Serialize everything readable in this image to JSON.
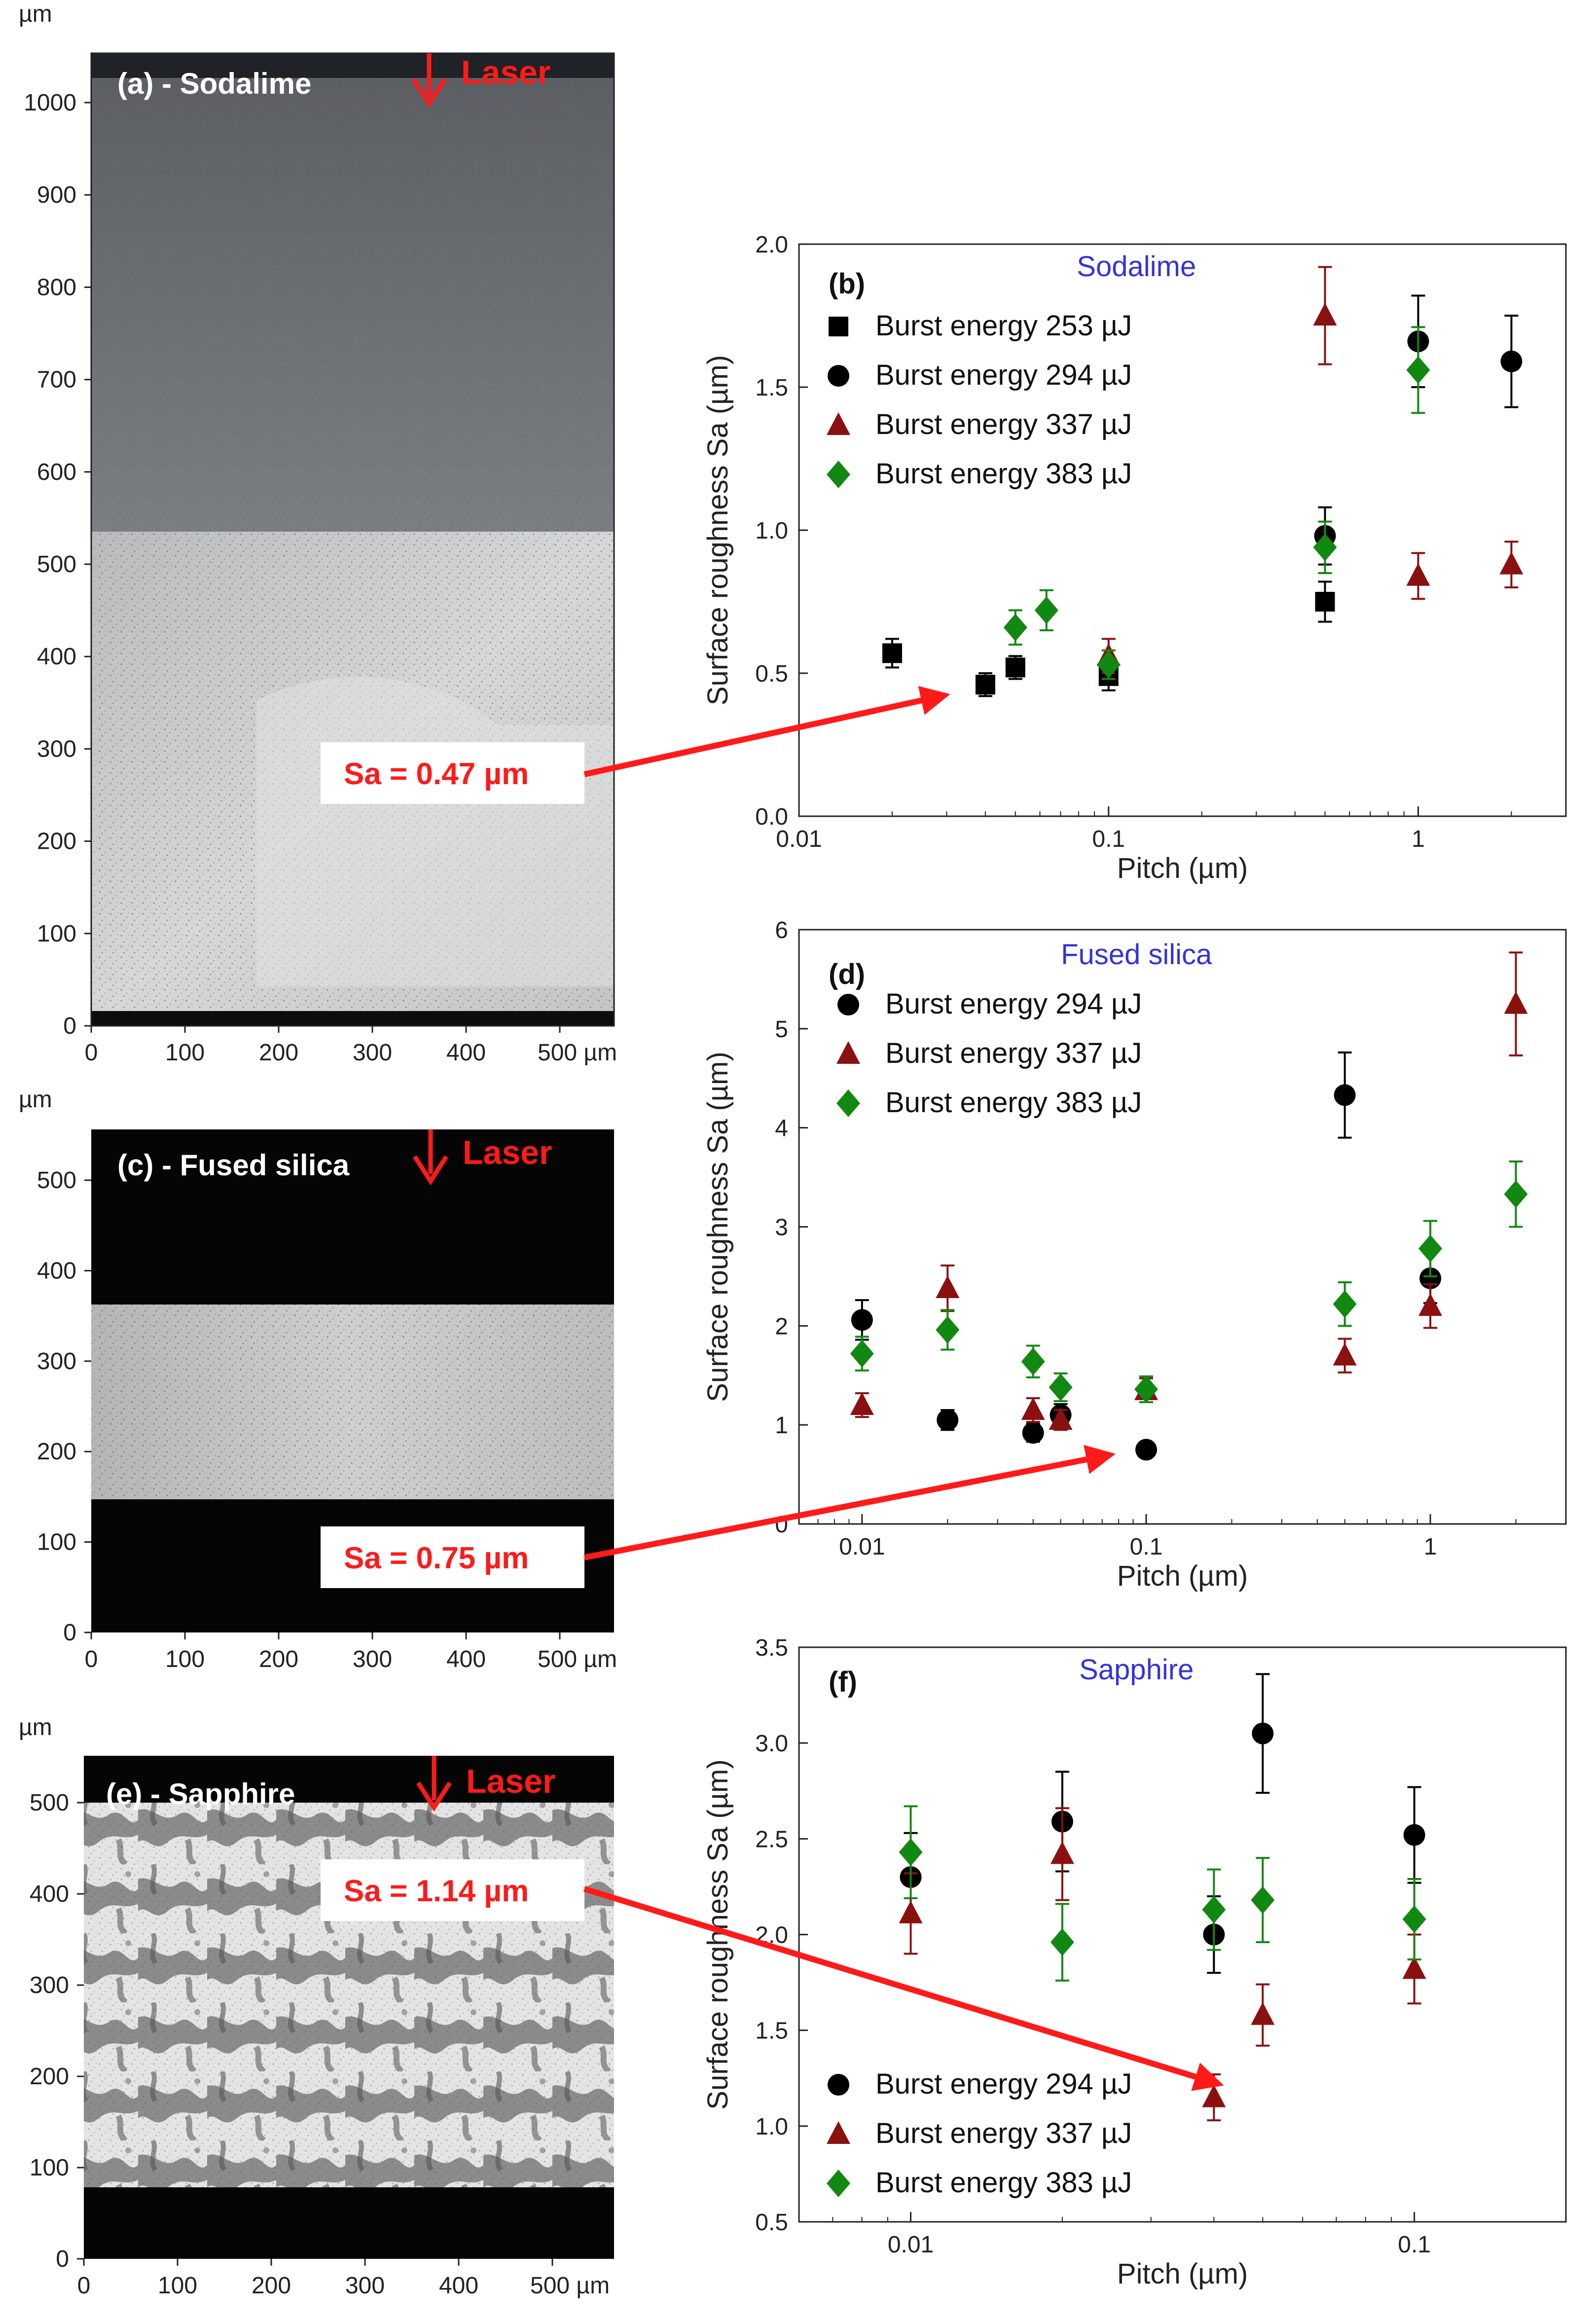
{
  "colors": {
    "black_series": "#000000",
    "red_series": "#8b1010",
    "green_series": "#118811",
    "title_blue": "#3333dd",
    "arrow_red": "#ff1a1a"
  },
  "micrographs": [
    {
      "id": "a",
      "title": "(a) - Sodalime",
      "laser_label": "Laser",
      "unit": "µm",
      "y_ticks": [
        "0",
        "100",
        "200",
        "300",
        "400",
        "500",
        "600",
        "700",
        "800",
        "900",
        "1000"
      ],
      "x_ticks": [
        "0",
        "100",
        "200",
        "300",
        "400",
        "500 µm"
      ],
      "sa_label": "Sa = 0.47 µm"
    },
    {
      "id": "c",
      "title": "(c) - Fused silica",
      "laser_label": "Laser",
      "unit": "µm",
      "y_ticks": [
        "0",
        "100",
        "200",
        "300",
        "400",
        "500"
      ],
      "x_ticks": [
        "0",
        "100",
        "200",
        "300",
        "400",
        "500 µm"
      ],
      "sa_label": "Sa = 0.75 µm"
    },
    {
      "id": "e",
      "title": "(e) - Sapphire",
      "laser_label": "Laser",
      "unit": "µm",
      "y_ticks": [
        "0",
        "100",
        "200",
        "300",
        "400",
        "500"
      ],
      "x_ticks": [
        "0",
        "100",
        "200",
        "300",
        "400",
        "500 µm"
      ],
      "sa_label": "Sa = 1.14 µm"
    }
  ],
  "chart_data": [
    {
      "id": "b",
      "type": "scatter",
      "panel_label": "(b)",
      "title": "Sodalime",
      "xlabel": "Pitch (µm)",
      "ylabel": "Surface roughness Sa (µm)",
      "xscale": "log",
      "xlim": [
        0.01,
        3
      ],
      "ylim": [
        0,
        2
      ],
      "x_ticks": [
        0.01,
        0.1,
        1
      ],
      "x_tick_labels": [
        "0.01",
        "0.1",
        "1"
      ],
      "y_ticks": [
        0,
        0.5,
        1,
        1.5,
        2
      ],
      "y_tick_labels": [
        "0.0",
        "0.5",
        "1.0",
        "1.5",
        "2.0"
      ],
      "legend_position": "top-left",
      "series": [
        {
          "name": "Burst energy 253 µJ",
          "marker": "square",
          "color": "#000000",
          "x": [
            0.02,
            0.04,
            0.05,
            0.1,
            0.5
          ],
          "y": [
            0.57,
            0.46,
            0.52,
            0.49,
            0.75
          ],
          "err": [
            0.05,
            0.04,
            0.04,
            0.05,
            0.07
          ]
        },
        {
          "name": "Burst energy 294 µJ",
          "marker": "circle",
          "color": "#000000",
          "x": [
            0.5,
            1,
            2
          ],
          "y": [
            0.98,
            1.66,
            1.59
          ],
          "err": [
            0.1,
            0.16,
            0.16
          ]
        },
        {
          "name": "Burst energy 337 µJ",
          "marker": "triangle",
          "color": "#8b1010",
          "x": [
            0.1,
            0.5,
            1,
            2
          ],
          "y": [
            0.56,
            1.75,
            0.84,
            0.88
          ],
          "err": [
            0.06,
            0.17,
            0.08,
            0.08
          ]
        },
        {
          "name": "Burst energy 383 µJ",
          "marker": "diamond",
          "color": "#118811",
          "x": [
            0.05,
            0.063,
            0.1,
            0.5,
            1
          ],
          "y": [
            0.66,
            0.72,
            0.53,
            0.94,
            1.56
          ],
          "err": [
            0.06,
            0.07,
            0.05,
            0.09,
            0.15
          ]
        }
      ]
    },
    {
      "id": "d",
      "type": "scatter",
      "panel_label": "(d)",
      "title": "Fused silica",
      "xlabel": "Pitch (µm)",
      "ylabel": "Surface roughness Sa (µm)",
      "xscale": "log",
      "xlim": [
        0.006,
        3
      ],
      "ylim": [
        0,
        6
      ],
      "x_ticks": [
        0.01,
        0.1,
        1
      ],
      "x_tick_labels": [
        "0.01",
        "0.1",
        "1"
      ],
      "y_ticks": [
        0,
        1,
        2,
        3,
        4,
        5,
        6
      ],
      "y_tick_labels": [
        "0",
        "1",
        "2",
        "3",
        "4",
        "5",
        "6"
      ],
      "legend_position": "top-left",
      "series": [
        {
          "name": "Burst energy 294 µJ",
          "marker": "circle",
          "color": "#000000",
          "x": [
            0.01,
            0.02,
            0.04,
            0.05,
            0.1,
            0.5,
            1
          ],
          "y": [
            2.06,
            1.05,
            0.92,
            1.1,
            0.75,
            4.33,
            2.48
          ],
          "err": [
            0.2,
            0.1,
            0.09,
            0.11,
            0.05,
            0.43,
            0.25
          ]
        },
        {
          "name": "Burst energy 337 µJ",
          "marker": "triangle",
          "color": "#8b1010",
          "x": [
            0.01,
            0.02,
            0.04,
            0.05,
            0.1,
            0.5,
            1,
            2
          ],
          "y": [
            1.2,
            2.38,
            1.15,
            1.05,
            1.35,
            1.7,
            2.2,
            5.25
          ],
          "err": [
            0.12,
            0.23,
            0.12,
            0.1,
            0.12,
            0.17,
            0.22,
            0.52
          ]
        },
        {
          "name": "Burst energy 383 µJ",
          "marker": "diamond",
          "color": "#118811",
          "x": [
            0.01,
            0.02,
            0.04,
            0.05,
            0.1,
            0.5,
            1,
            2
          ],
          "y": [
            1.72,
            1.96,
            1.64,
            1.38,
            1.36,
            2.22,
            2.78,
            3.33
          ],
          "err": [
            0.17,
            0.2,
            0.16,
            0.14,
            0.13,
            0.22,
            0.28,
            0.33
          ]
        }
      ]
    },
    {
      "id": "f",
      "type": "scatter",
      "panel_label": "(f)",
      "title": "Sapphire",
      "xlabel": "Pitch (µm)",
      "ylabel": "Surface roughness Sa (µm)",
      "xscale": "log",
      "xlim": [
        0.006,
        0.2
      ],
      "ylim": [
        0.5,
        3.5
      ],
      "x_ticks": [
        0.01,
        0.1
      ],
      "x_tick_labels": [
        "0.01",
        "0.1"
      ],
      "y_ticks": [
        0.5,
        1,
        1.5,
        2,
        2.5,
        3,
        3.5
      ],
      "y_tick_labels": [
        "0.5",
        "1.0",
        "1.5",
        "2.0",
        "2.5",
        "3.0",
        "3.5"
      ],
      "legend_position": "bottom-left",
      "series": [
        {
          "name": "Burst energy 294 µJ",
          "marker": "circle",
          "color": "#000000",
          "x": [
            0.01,
            0.02,
            0.04,
            0.05,
            0.1
          ],
          "y": [
            2.3,
            2.59,
            2.0,
            3.05,
            2.52
          ],
          "err": [
            0.23,
            0.26,
            0.2,
            0.31,
            0.25
          ]
        },
        {
          "name": "Burst energy 337 µJ",
          "marker": "triangle",
          "color": "#8b1010",
          "x": [
            0.01,
            0.02,
            0.04,
            0.05,
            0.1
          ],
          "y": [
            2.11,
            2.42,
            1.15,
            1.58,
            1.82
          ],
          "err": [
            0.21,
            0.24,
            0.12,
            0.16,
            0.18
          ]
        },
        {
          "name": "Burst energy 383 µJ",
          "marker": "diamond",
          "color": "#118811",
          "x": [
            0.01,
            0.02,
            0.04,
            0.05,
            0.1
          ],
          "y": [
            2.43,
            1.96,
            2.13,
            2.18,
            2.08
          ],
          "err": [
            0.24,
            0.2,
            0.21,
            0.22,
            0.21
          ]
        }
      ]
    }
  ]
}
